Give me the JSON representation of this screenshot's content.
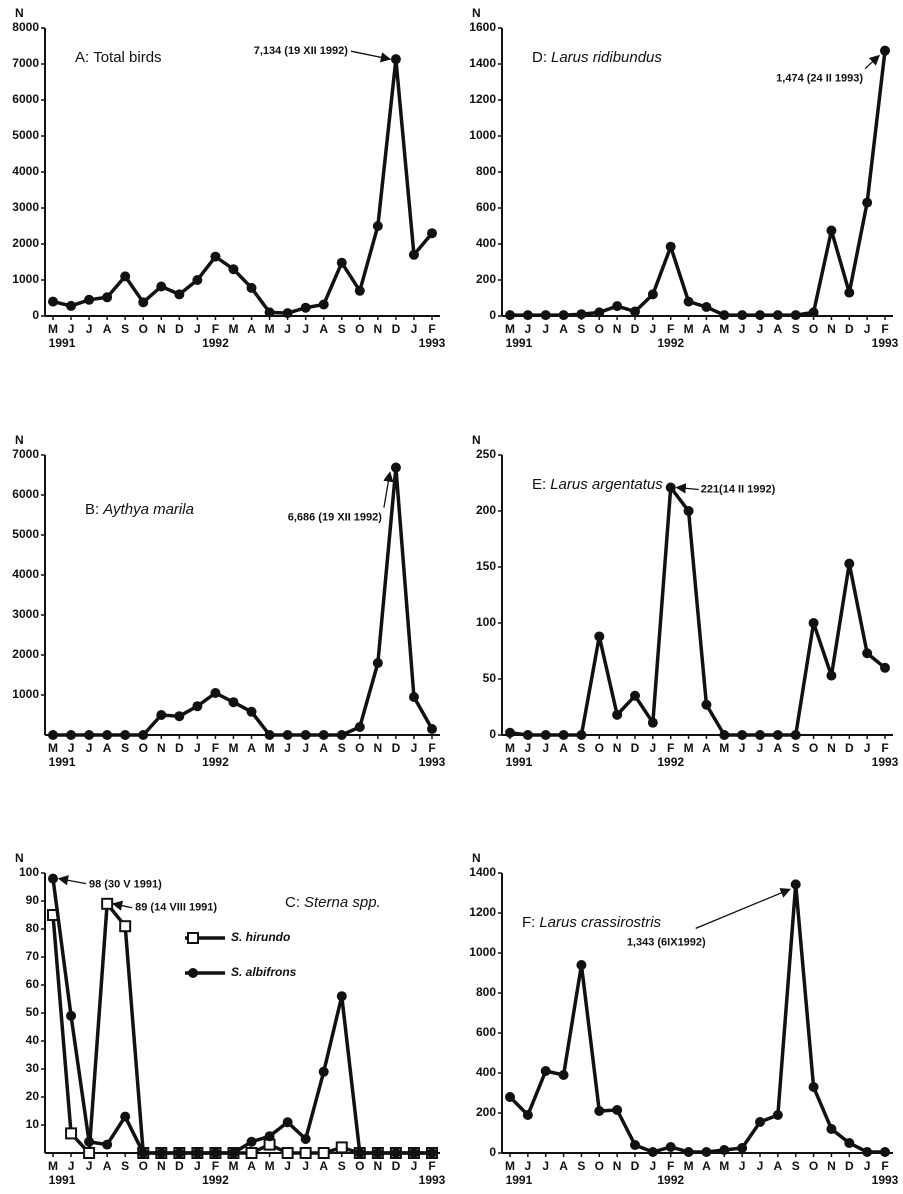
{
  "chart_data": [
    {
      "type": "line",
      "panel": "A:",
      "title": "Total birds",
      "title_italic": false,
      "y_label": "N",
      "categories": [
        "M",
        "J",
        "J",
        "A",
        "S",
        "O",
        "N",
        "D",
        "J",
        "F",
        "M",
        "A",
        "M",
        "J",
        "J",
        "A",
        "S",
        "O",
        "N",
        "D",
        "J",
        "F"
      ],
      "years": [
        "1991",
        null,
        null,
        null,
        null,
        null,
        null,
        null,
        null,
        "1992",
        null,
        null,
        null,
        null,
        null,
        null,
        null,
        null,
        null,
        null,
        null,
        "1993"
      ],
      "values": [
        400,
        280,
        450,
        520,
        1100,
        380,
        820,
        600,
        1000,
        1650,
        1300,
        780,
        100,
        80,
        230,
        320,
        1480,
        700,
        2500,
        7134,
        1700,
        2300
      ],
      "color": "#111111",
      "annotation": "7,134 (19 XII 1992)",
      "ylim": [
        0,
        8000
      ],
      "yticks": [
        0,
        1000,
        2000,
        3000,
        4000,
        5000,
        6000,
        7000,
        8000
      ]
    },
    {
      "type": "line",
      "panel": "B:",
      "title": "Aythya marila",
      "title_italic": true,
      "y_label": "N",
      "categories": [
        "M",
        "J",
        "J",
        "A",
        "S",
        "O",
        "N",
        "D",
        "J",
        "F",
        "M",
        "A",
        "M",
        "J",
        "J",
        "A",
        "S",
        "O",
        "N",
        "D",
        "J",
        "F"
      ],
      "years": [
        "1991",
        null,
        null,
        null,
        null,
        null,
        null,
        null,
        null,
        "1992",
        null,
        null,
        null,
        null,
        null,
        null,
        null,
        null,
        null,
        null,
        null,
        "1993"
      ],
      "values": [
        0,
        0,
        0,
        0,
        0,
        0,
        500,
        470,
        720,
        1050,
        820,
        580,
        0,
        0,
        0,
        0,
        0,
        200,
        1800,
        6686,
        950,
        150
      ],
      "color": "#111111",
      "annotation": "6,686 (19 XII 1992)",
      "ylim": [
        0,
        7000
      ],
      "yticks": [
        1000,
        2000,
        3000,
        4000,
        5000,
        6000,
        7000
      ]
    },
    {
      "type": "multiline",
      "panel": "C:",
      "title": "Sterna spp.",
      "title_italic": true,
      "y_label": "N",
      "categories": [
        "M",
        "J",
        "J",
        "A",
        "S",
        "O",
        "N",
        "D",
        "J",
        "F",
        "M",
        "A",
        "M",
        "J",
        "J",
        "A",
        "S",
        "O",
        "N",
        "D",
        "J",
        "F"
      ],
      "years": [
        "1991",
        null,
        null,
        null,
        null,
        null,
        null,
        null,
        null,
        "1992",
        null,
        null,
        null,
        null,
        null,
        null,
        null,
        null,
        null,
        null,
        null,
        "1993"
      ],
      "series": [
        {
          "name": "S. hirundo",
          "color": "#111111",
          "marker": "square-open",
          "annotation": "89 (14 VIII 1991)",
          "values": [
            85,
            7,
            0,
            89,
            81,
            0,
            0,
            0,
            0,
            0,
            0,
            0,
            3,
            0,
            0,
            0,
            2,
            0,
            0,
            0,
            0,
            0
          ]
        },
        {
          "name": "S. albifrons",
          "color": "#111111",
          "marker": "circle",
          "annotation": "98 (30 V 1991)",
          "values": [
            98,
            49,
            4,
            3,
            13,
            0,
            0,
            0,
            0,
            0,
            0,
            4,
            6,
            11,
            5,
            29,
            56,
            0,
            0,
            0,
            0,
            0
          ]
        }
      ],
      "ylim": [
        0,
        100
      ],
      "yticks": [
        10,
        20,
        30,
        40,
        50,
        60,
        70,
        80,
        90,
        100
      ]
    },
    {
      "type": "line",
      "panel": "D:",
      "title": "Larus ridibundus",
      "title_italic": true,
      "y_label": "N",
      "categories": [
        "M",
        "J",
        "J",
        "A",
        "S",
        "O",
        "N",
        "D",
        "J",
        "F",
        "M",
        "A",
        "M",
        "J",
        "J",
        "A",
        "S",
        "O",
        "N",
        "D",
        "J",
        "F"
      ],
      "years": [
        "1991",
        null,
        null,
        null,
        null,
        null,
        null,
        null,
        null,
        "1992",
        null,
        null,
        null,
        null,
        null,
        null,
        null,
        null,
        null,
        null,
        null,
        "1993"
      ],
      "values": [
        5,
        5,
        5,
        5,
        10,
        20,
        55,
        25,
        120,
        385,
        80,
        50,
        5,
        5,
        5,
        5,
        5,
        20,
        475,
        130,
        630,
        1474
      ],
      "color": "#111111",
      "annotation": "1,474 (24 II 1993)",
      "ylim": [
        0,
        1600
      ],
      "yticks": [
        0,
        200,
        400,
        600,
        800,
        1000,
        1200,
        1400,
        1600
      ]
    },
    {
      "type": "line",
      "panel": "E:",
      "title": "Larus argentatus",
      "title_italic": true,
      "y_label": "N",
      "categories": [
        "M",
        "J",
        "J",
        "A",
        "S",
        "O",
        "N",
        "D",
        "J",
        "F",
        "M",
        "A",
        "M",
        "J",
        "J",
        "A",
        "S",
        "O",
        "N",
        "D",
        "J",
        "F"
      ],
      "years": [
        "1991",
        null,
        null,
        null,
        null,
        null,
        null,
        null,
        null,
        "1992",
        null,
        null,
        null,
        null,
        null,
        null,
        null,
        null,
        null,
        null,
        null,
        "1993"
      ],
      "values": [
        2,
        0,
        0,
        0,
        0,
        88,
        18,
        35,
        11,
        221,
        200,
        27,
        0,
        0,
        0,
        0,
        0,
        100,
        53,
        153,
        73,
        60
      ],
      "color": "#111111",
      "annotation": "221(14 II 1992)",
      "ylim": [
        0,
        250
      ],
      "yticks": [
        0,
        50,
        100,
        150,
        200,
        250
      ]
    },
    {
      "type": "line",
      "panel": "F:",
      "title": "Larus crassirostris",
      "title_italic": true,
      "y_label": "N",
      "categories": [
        "M",
        "J",
        "J",
        "A",
        "S",
        "O",
        "N",
        "D",
        "J",
        "F",
        "M",
        "A",
        "M",
        "J",
        "J",
        "A",
        "S",
        "O",
        "N",
        "D",
        "J",
        "F"
      ],
      "years": [
        "1991",
        null,
        null,
        null,
        null,
        null,
        null,
        null,
        null,
        "1992",
        null,
        null,
        null,
        null,
        null,
        null,
        null,
        null,
        null,
        null,
        null,
        "1993"
      ],
      "values": [
        280,
        190,
        410,
        390,
        940,
        210,
        215,
        40,
        5,
        30,
        5,
        5,
        15,
        25,
        155,
        190,
        1343,
        330,
        120,
        50,
        5,
        5
      ],
      "color": "#111111",
      "annotation": "1,343 (6IX1992)",
      "ylim": [
        0,
        1400
      ],
      "yticks": [
        0,
        200,
        400,
        600,
        800,
        1000,
        1200,
        1400
      ]
    }
  ]
}
